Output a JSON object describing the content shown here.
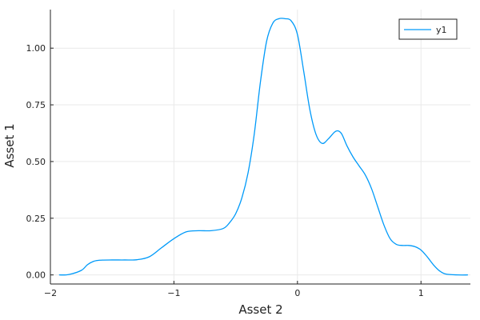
{
  "chart_data": {
    "type": "line",
    "xlabel": "Asset 2",
    "ylabel": "Asset 1",
    "xlim": [
      -2.0,
      1.4
    ],
    "ylim": [
      -0.04,
      1.17
    ],
    "x_ticks": [
      -2,
      -1,
      0,
      1
    ],
    "x_tick_labels": [
      "−2",
      "−1",
      "0",
      "1"
    ],
    "y_ticks": [
      0.0,
      0.25,
      0.5,
      0.75,
      1.0
    ],
    "y_tick_labels": [
      "0.00",
      "0.25",
      "0.50",
      "0.75",
      "1.00"
    ],
    "grid": true,
    "legend_position": "top-right",
    "series": [
      {
        "name": "y1",
        "color": "#009af9",
        "x": [
          -1.93,
          -1.85,
          -1.75,
          -1.7,
          -1.65,
          -1.6,
          -1.5,
          -1.4,
          -1.3,
          -1.2,
          -1.1,
          -1.0,
          -0.9,
          -0.8,
          -0.7,
          -0.6,
          -0.55,
          -0.5,
          -0.45,
          -0.4,
          -0.35,
          -0.3,
          -0.25,
          -0.2,
          -0.15,
          -0.1,
          -0.05,
          0.0,
          0.05,
          0.1,
          0.15,
          0.2,
          0.25,
          0.3,
          0.33,
          0.36,
          0.4,
          0.45,
          0.5,
          0.55,
          0.6,
          0.65,
          0.7,
          0.75,
          0.8,
          0.85,
          0.9,
          0.95,
          1.0,
          1.05,
          1.1,
          1.15,
          1.2,
          1.3,
          1.38
        ],
        "y": [
          0.0,
          0.002,
          0.02,
          0.045,
          0.06,
          0.065,
          0.066,
          0.066,
          0.067,
          0.08,
          0.12,
          0.16,
          0.19,
          0.195,
          0.195,
          0.205,
          0.23,
          0.27,
          0.34,
          0.45,
          0.62,
          0.85,
          1.03,
          1.11,
          1.13,
          1.13,
          1.12,
          1.06,
          0.9,
          0.73,
          0.62,
          0.58,
          0.6,
          0.63,
          0.635,
          0.62,
          0.57,
          0.52,
          0.48,
          0.44,
          0.38,
          0.3,
          0.22,
          0.16,
          0.135,
          0.13,
          0.13,
          0.125,
          0.11,
          0.08,
          0.045,
          0.018,
          0.004,
          0.0,
          0.0
        ]
      }
    ]
  }
}
